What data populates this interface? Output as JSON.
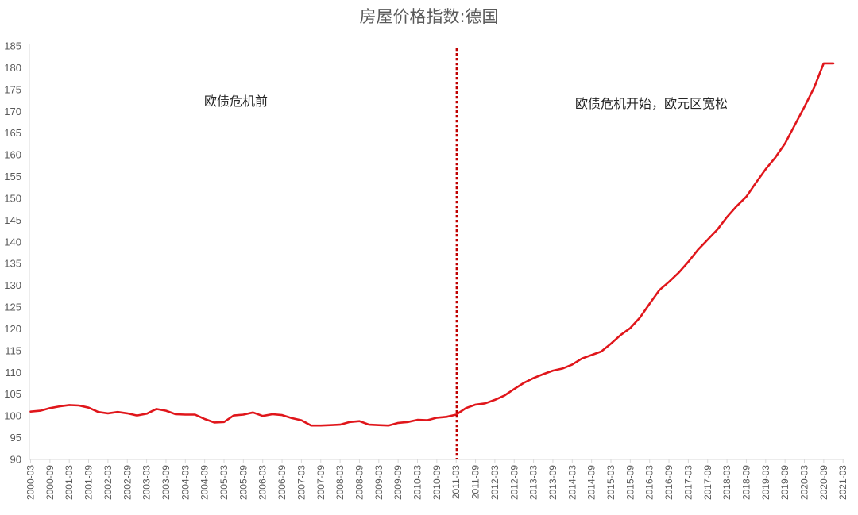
{
  "chart_data": {
    "type": "line",
    "title": "房屋价格指数:德国",
    "xlabel": "",
    "ylabel": "",
    "ylim": [
      90,
      185
    ],
    "yticks": [
      90,
      95,
      100,
      105,
      110,
      115,
      120,
      125,
      130,
      135,
      140,
      145,
      150,
      155,
      160,
      165,
      170,
      175,
      180,
      185
    ],
    "grid": false,
    "legend": "none",
    "line_color": "#E0161B",
    "divider_color": "#C00000",
    "x_tick_labels": [
      "2000-03",
      "2000-09",
      "2001-03",
      "2001-09",
      "2002-03",
      "2002-09",
      "2003-03",
      "2003-09",
      "2004-03",
      "2004-09",
      "2005-03",
      "2005-09",
      "2006-03",
      "2006-09",
      "2007-03",
      "2007-09",
      "2008-03",
      "2008-09",
      "2009-03",
      "2009-09",
      "2010-03",
      "2010-09",
      "2011-03",
      "2011-09",
      "2012-03",
      "2012-09",
      "2013-03",
      "2013-09",
      "2014-03",
      "2014-09",
      "2015-03",
      "2015-09",
      "2016-03",
      "2016-09",
      "2017-03",
      "2017-09",
      "2018-03",
      "2018-09",
      "2019-03",
      "2019-09",
      "2020-03",
      "2020-09",
      "2021-03"
    ],
    "series": [
      {
        "x": [
          "2000-03",
          "2000-06",
          "2000-09",
          "2000-12",
          "2001-03",
          "2001-06",
          "2001-09",
          "2001-12",
          "2002-03",
          "2002-06",
          "2002-09",
          "2002-12",
          "2003-03",
          "2003-06",
          "2003-09",
          "2003-12",
          "2004-03",
          "2004-06",
          "2004-09",
          "2004-12",
          "2005-03",
          "2005-06",
          "2005-09",
          "2005-12",
          "2006-03",
          "2006-06",
          "2006-09",
          "2006-12",
          "2007-03",
          "2007-06",
          "2007-09",
          "2007-12",
          "2008-03",
          "2008-06",
          "2008-09",
          "2008-12",
          "2009-03",
          "2009-06",
          "2009-09",
          "2009-12",
          "2010-03",
          "2010-06",
          "2010-09",
          "2010-12",
          "2011-03",
          "2011-06",
          "2011-09",
          "2011-12",
          "2012-03",
          "2012-06",
          "2012-09",
          "2012-12",
          "2013-03",
          "2013-06",
          "2013-09",
          "2013-12",
          "2014-03",
          "2014-06",
          "2014-09",
          "2014-12",
          "2015-03",
          "2015-06",
          "2015-09",
          "2015-12",
          "2016-03",
          "2016-06",
          "2016-09",
          "2016-12",
          "2017-03",
          "2017-06",
          "2017-09",
          "2017-12",
          "2018-03",
          "2018-06",
          "2018-09",
          "2018-12",
          "2019-03",
          "2019-06",
          "2019-09",
          "2019-12",
          "2020-03",
          "2020-06",
          "2020-09",
          "2020-12",
          "2021-03",
          "2021-06"
        ],
        "values": [
          101.0,
          101.2,
          101.8,
          102.2,
          102.5,
          102.4,
          101.9,
          100.9,
          100.6,
          100.9,
          100.6,
          100.1,
          100.5,
          101.6,
          101.2,
          100.4,
          100.3,
          100.3,
          99.3,
          98.5,
          98.6,
          100.1,
          100.3,
          100.8,
          100.0,
          100.4,
          100.2,
          99.5,
          99.0,
          97.8,
          97.8,
          97.9,
          98.0,
          98.6,
          98.8,
          98.0,
          97.9,
          97.8,
          98.4,
          98.6,
          99.1,
          99.0,
          99.6,
          99.8,
          100.3,
          101.8,
          102.6,
          102.9,
          103.7,
          104.7,
          106.2,
          107.6,
          108.7,
          109.6,
          110.4,
          110.9,
          111.8,
          113.2,
          114.0,
          114.8,
          116.6,
          118.6,
          120.2,
          122.6,
          125.8,
          128.9,
          130.8,
          132.9,
          135.4,
          138.2,
          140.5,
          142.8,
          145.7,
          148.2,
          150.4,
          153.6,
          156.7,
          159.4,
          162.6,
          166.8,
          171.0,
          175.4,
          181.0,
          181.0,
          181.0,
          181.0
        ]
      }
    ],
    "divider_at": "2011-03",
    "annotations": [
      {
        "text": "欧债危机前"
      },
      {
        "text": "欧债危机开始，欧元区宽松"
      }
    ]
  }
}
